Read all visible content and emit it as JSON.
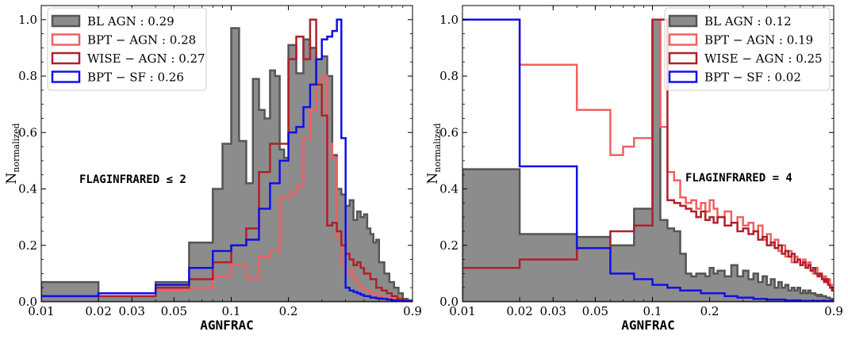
{
  "colors": {
    "bl_fill": "#8c8c8c",
    "bl_edge": "#555555",
    "bpt_agn": "#f06060",
    "wise_agn": "#b0202a",
    "bpt_sf": "#1010e8"
  },
  "chart_data": [
    {
      "type": "histogram",
      "xlabel": "AGNFRAC",
      "ylabel": "N",
      "ylabel_sub": "normalized",
      "annotation": "FLAGINFRARED ≤ 2",
      "x_scale": "log",
      "xlim": [
        0.01,
        0.9
      ],
      "ylim": [
        0,
        1.05
      ],
      "xticks": [
        0.01,
        0.02,
        0.03,
        0.05,
        0.1,
        0.2,
        0.9
      ],
      "xtick_labels": [
        "0.01",
        "0.02",
        "0.03",
        "0.05",
        "0.1",
        "0.2",
        "0.9"
      ],
      "yticks": [
        0,
        0.2,
        0.4,
        0.6,
        0.8,
        1.0
      ],
      "ytick_labels": [
        "0.0",
        "0.2",
        "0.4",
        "0.6",
        "0.8",
        "1.0"
      ],
      "legend_position": "top-left",
      "series": [
        {
          "key": "bl",
          "name": "BL AGN : 0.29",
          "style": "filled",
          "edges": [
            0.01,
            0.02,
            0.04,
            0.06,
            0.08,
            0.09,
            0.1,
            0.11,
            0.12,
            0.13,
            0.14,
            0.15,
            0.16,
            0.17,
            0.18,
            0.19,
            0.2,
            0.22,
            0.24,
            0.26,
            0.28,
            0.3,
            0.32,
            0.34,
            0.36,
            0.38,
            0.4,
            0.42,
            0.44,
            0.46,
            0.48,
            0.5,
            0.52,
            0.54,
            0.56,
            0.58,
            0.6,
            0.64,
            0.68,
            0.72,
            0.76,
            0.8,
            0.85,
            0.9
          ],
          "values": [
            0.07,
            0.02,
            0.07,
            0.21,
            0.4,
            0.56,
            0.97,
            0.57,
            0.42,
            0.79,
            0.68,
            0.65,
            0.82,
            0.8,
            0.54,
            0.51,
            0.91,
            0.81,
            0.93,
            0.9,
            0.86,
            0.87,
            0.8,
            0.52,
            0.4,
            0.38,
            0.34,
            0.36,
            0.29,
            0.32,
            0.3,
            0.31,
            0.26,
            0.24,
            0.21,
            0.22,
            0.14,
            0.1,
            0.07,
            0.05,
            0.03,
            0.01,
            0.005
          ]
        },
        {
          "key": "bpt",
          "name": "BPT − AGN :  0.28",
          "style": "step",
          "edges": [
            0.01,
            0.02,
            0.04,
            0.06,
            0.08,
            0.1,
            0.12,
            0.14,
            0.16,
            0.18,
            0.2,
            0.22,
            0.24,
            0.26,
            0.28,
            0.3,
            0.32,
            0.34,
            0.36,
            0.38,
            0.4,
            0.42,
            0.44,
            0.46,
            0.48,
            0.5,
            0.54,
            0.58,
            0.62,
            0.66,
            0.7,
            0.75,
            0.8,
            0.9
          ],
          "values": [
            0.02,
            0.03,
            0.04,
            0.05,
            0.09,
            0.13,
            0.08,
            0.16,
            0.18,
            0.37,
            0.38,
            0.41,
            0.58,
            0.68,
            0.78,
            0.8,
            0.56,
            0.51,
            0.23,
            0.13,
            0.1,
            0.11,
            0.08,
            0.06,
            0.05,
            0.04,
            0.03,
            0.02,
            0.015,
            0.01,
            0.01,
            0.005,
            0.003
          ]
        },
        {
          "key": "wise",
          "name": "WISE − AGN :  0.27",
          "style": "step",
          "edges": [
            0.01,
            0.02,
            0.04,
            0.06,
            0.08,
            0.1,
            0.12,
            0.14,
            0.16,
            0.18,
            0.2,
            0.22,
            0.24,
            0.26,
            0.28,
            0.3,
            0.32,
            0.34,
            0.36,
            0.38,
            0.4,
            0.42,
            0.44,
            0.46,
            0.48,
            0.5,
            0.54,
            0.58,
            0.62,
            0.66,
            0.7,
            0.75,
            0.8,
            0.9
          ],
          "values": [
            0.02,
            0.02,
            0.05,
            0.08,
            0.14,
            0.2,
            0.26,
            0.46,
            0.56,
            0.56,
            0.86,
            0.94,
            0.86,
            1.0,
            0.77,
            0.66,
            0.27,
            0.28,
            0.25,
            0.2,
            0.17,
            0.15,
            0.13,
            0.14,
            0.12,
            0.1,
            0.08,
            0.05,
            0.04,
            0.03,
            0.02,
            0.01,
            0.005
          ]
        },
        {
          "key": "sf",
          "name": "BPT − SF :  0.26",
          "style": "step",
          "edges": [
            0.01,
            0.02,
            0.04,
            0.06,
            0.08,
            0.1,
            0.12,
            0.14,
            0.16,
            0.18,
            0.2,
            0.22,
            0.24,
            0.26,
            0.28,
            0.3,
            0.32,
            0.34,
            0.36,
            0.38,
            0.4,
            0.42,
            0.44,
            0.46,
            0.48,
            0.5,
            0.54,
            0.58,
            0.62,
            0.66,
            0.7,
            0.75,
            0.8,
            0.9
          ],
          "values": [
            0.02,
            0.03,
            0.06,
            0.12,
            0.18,
            0.2,
            0.22,
            0.33,
            0.42,
            0.5,
            0.6,
            0.62,
            0.69,
            0.77,
            0.86,
            0.93,
            0.94,
            0.96,
            1.0,
            0.58,
            0.05,
            0.04,
            0.035,
            0.03,
            0.025,
            0.02,
            0.015,
            0.012,
            0.01,
            0.008,
            0.005,
            0.003,
            0.002
          ]
        }
      ]
    },
    {
      "type": "histogram",
      "xlabel": "AGNFRAC",
      "ylabel": "N",
      "ylabel_sub": "normalized",
      "annotation": "FLAGINFRARED = 4",
      "x_scale": "log",
      "xlim": [
        0.01,
        0.9
      ],
      "ylim": [
        0,
        1.05
      ],
      "xticks": [
        0.01,
        0.02,
        0.03,
        0.05,
        0.1,
        0.2,
        0.9
      ],
      "xtick_labels": [
        "0.01",
        "0.02",
        "0.03",
        "0.05",
        "0.1",
        "0.2",
        "0.9"
      ],
      "yticks": [
        0,
        0.2,
        0.4,
        0.6,
        0.8,
        1.0
      ],
      "ytick_labels": [
        "0.0",
        "0.2",
        "0.4",
        "0.6",
        "0.8",
        "1.0"
      ],
      "legend_position": "top-right",
      "series": [
        {
          "key": "bl",
          "name": "BL AGN : 0.12",
          "style": "filled",
          "edges": [
            0.01,
            0.02,
            0.04,
            0.06,
            0.08,
            0.1,
            0.11,
            0.12,
            0.13,
            0.14,
            0.15,
            0.16,
            0.17,
            0.18,
            0.19,
            0.2,
            0.21,
            0.22,
            0.24,
            0.26,
            0.28,
            0.3,
            0.32,
            0.34,
            0.36,
            0.38,
            0.4,
            0.42,
            0.44,
            0.46,
            0.48,
            0.5,
            0.52,
            0.54,
            0.56,
            0.58,
            0.6,
            0.62,
            0.64,
            0.66,
            0.68,
            0.7,
            0.72,
            0.74,
            0.76,
            0.78,
            0.8,
            0.82,
            0.84,
            0.86,
            0.88,
            0.9
          ],
          "values": [
            0.47,
            0.24,
            0.23,
            0.2,
            0.33,
            1.0,
            0.29,
            0.26,
            0.25,
            0.17,
            0.1,
            0.09,
            0.1,
            0.1,
            0.09,
            0.12,
            0.1,
            0.11,
            0.09,
            0.13,
            0.09,
            0.11,
            0.08,
            0.1,
            0.07,
            0.09,
            0.06,
            0.08,
            0.05,
            0.07,
            0.05,
            0.06,
            0.04,
            0.05,
            0.04,
            0.05,
            0.03,
            0.04,
            0.03,
            0.04,
            0.03,
            0.03,
            0.025,
            0.02,
            0.025,
            0.02,
            0.02,
            0.015,
            0.015,
            0.01,
            0.01
          ]
        },
        {
          "key": "bpt",
          "name": "BPT − AGN :  0.19",
          "style": "step",
          "edges": [
            0.01,
            0.02,
            0.04,
            0.06,
            0.07,
            0.08,
            0.1,
            0.11,
            0.12,
            0.13,
            0.14,
            0.15,
            0.16,
            0.17,
            0.18,
            0.19,
            0.2,
            0.21,
            0.22,
            0.24,
            0.26,
            0.28,
            0.3,
            0.32,
            0.34,
            0.36,
            0.38,
            0.4,
            0.42,
            0.44,
            0.46,
            0.48,
            0.5,
            0.52,
            0.54,
            0.56,
            0.58,
            0.6,
            0.62,
            0.64,
            0.66,
            0.68,
            0.7,
            0.72,
            0.74,
            0.76,
            0.78,
            0.8,
            0.82,
            0.84,
            0.86,
            0.88,
            0.9
          ],
          "values": [
            1.0,
            0.84,
            0.68,
            0.52,
            0.55,
            0.58,
            1.0,
            0.62,
            0.46,
            0.43,
            0.37,
            0.35,
            0.36,
            0.33,
            0.35,
            0.32,
            0.36,
            0.33,
            0.3,
            0.32,
            0.28,
            0.3,
            0.27,
            0.28,
            0.25,
            0.27,
            0.22,
            0.24,
            0.2,
            0.22,
            0.18,
            0.2,
            0.16,
            0.18,
            0.14,
            0.16,
            0.15,
            0.13,
            0.15,
            0.12,
            0.14,
            0.11,
            0.1,
            0.12,
            0.09,
            0.1,
            0.08,
            0.09,
            0.07,
            0.08,
            0.06,
            0.05
          ]
        },
        {
          "key": "wise",
          "name": "WISE − AGN :  0.25",
          "style": "step",
          "edges": [
            0.01,
            0.02,
            0.04,
            0.06,
            0.08,
            0.1,
            0.12,
            0.13,
            0.14,
            0.15,
            0.16,
            0.17,
            0.18,
            0.19,
            0.2,
            0.21,
            0.22,
            0.24,
            0.26,
            0.28,
            0.3,
            0.32,
            0.34,
            0.36,
            0.38,
            0.4,
            0.42,
            0.44,
            0.46,
            0.48,
            0.5,
            0.52,
            0.54,
            0.56,
            0.58,
            0.6,
            0.62,
            0.64,
            0.66,
            0.68,
            0.7,
            0.72,
            0.74,
            0.76,
            0.78,
            0.8,
            0.82,
            0.84,
            0.86,
            0.88,
            0.9
          ],
          "values": [
            0.12,
            0.15,
            0.19,
            0.25,
            0.27,
            1.0,
            0.36,
            0.35,
            0.34,
            0.33,
            0.32,
            0.3,
            0.32,
            0.29,
            0.3,
            0.28,
            0.3,
            0.27,
            0.28,
            0.25,
            0.26,
            0.24,
            0.25,
            0.22,
            0.23,
            0.2,
            0.21,
            0.19,
            0.2,
            0.17,
            0.18,
            0.16,
            0.17,
            0.14,
            0.15,
            0.13,
            0.14,
            0.12,
            0.13,
            0.11,
            0.12,
            0.1,
            0.09,
            0.1,
            0.08,
            0.07,
            0.08,
            0.06,
            0.05,
            0.04
          ]
        },
        {
          "key": "sf",
          "name": "BPT − SF :  0.02",
          "style": "step",
          "edges": [
            0.01,
            0.02,
            0.04,
            0.06,
            0.08,
            0.1,
            0.12,
            0.14,
            0.16,
            0.18,
            0.2,
            0.24,
            0.28,
            0.34,
            0.4,
            0.5,
            0.6,
            0.9
          ],
          "values": [
            1.0,
            0.48,
            0.19,
            0.1,
            0.08,
            0.06,
            0.05,
            0.04,
            0.04,
            0.03,
            0.03,
            0.02,
            0.015,
            0.01,
            0.008,
            0.005,
            0.003
          ]
        }
      ]
    }
  ]
}
